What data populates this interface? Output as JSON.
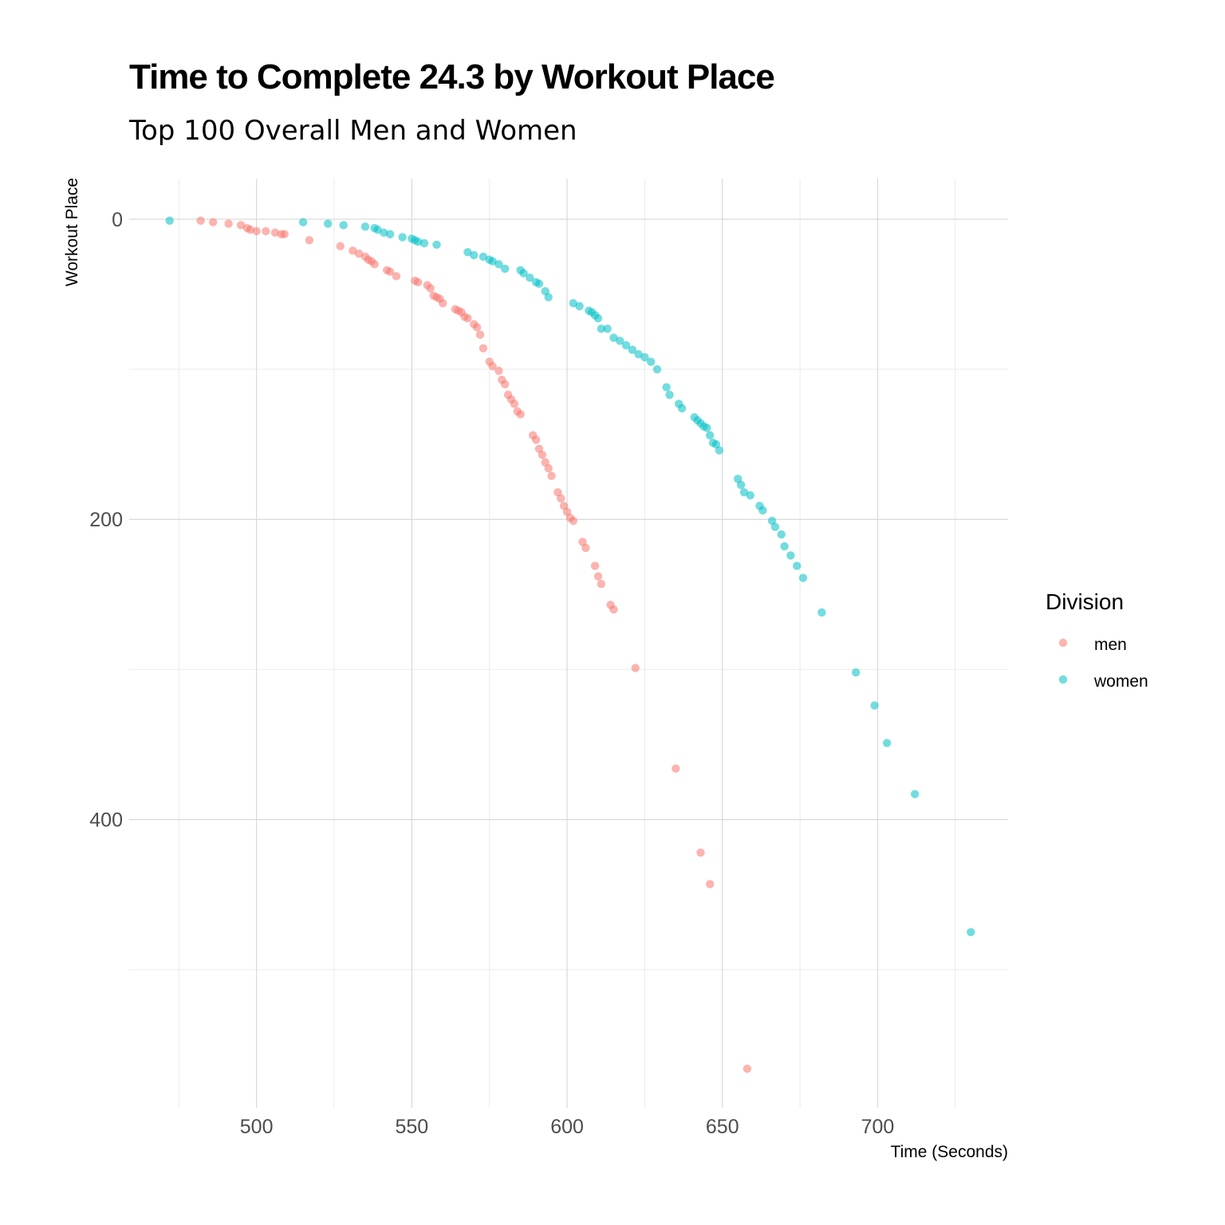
{
  "chart_data": {
    "type": "scatter",
    "title": "Time to Complete 24.3 by Workout Place",
    "subtitle": "Top 100 Overall Men and Women",
    "xlabel": "Time (Seconds)",
    "ylabel": "Workout Place",
    "xlim": [
      459,
      742
    ],
    "ylim": [
      -27,
      592
    ],
    "y_reversed": true,
    "x_ticks": [
      500,
      550,
      600,
      650,
      700
    ],
    "y_ticks": [
      0,
      200,
      400
    ],
    "grid": true,
    "legend": {
      "title": "Division",
      "position": "right"
    },
    "series": [
      {
        "name": "men",
        "color": "#F8766D",
        "points": [
          [
            482,
            1
          ],
          [
            486,
            2
          ],
          [
            491,
            3
          ],
          [
            495,
            4
          ],
          [
            497,
            6
          ],
          [
            498,
            7
          ],
          [
            500,
            8
          ],
          [
            503,
            8
          ],
          [
            506,
            9
          ],
          [
            508,
            10
          ],
          [
            509,
            10
          ],
          [
            517,
            14
          ],
          [
            527,
            18
          ],
          [
            531,
            21
          ],
          [
            533,
            23
          ],
          [
            535,
            25
          ],
          [
            536,
            27
          ],
          [
            537,
            28
          ],
          [
            538,
            30
          ],
          [
            542,
            34
          ],
          [
            543,
            35
          ],
          [
            545,
            38
          ],
          [
            551,
            41
          ],
          [
            552,
            42
          ],
          [
            555,
            44
          ],
          [
            556,
            46
          ],
          [
            557,
            51
          ],
          [
            558,
            52
          ],
          [
            559,
            53
          ],
          [
            560,
            56
          ],
          [
            564,
            60
          ],
          [
            565,
            61
          ],
          [
            566,
            62
          ],
          [
            567,
            65
          ],
          [
            568,
            66
          ],
          [
            570,
            70
          ],
          [
            571,
            72
          ],
          [
            572,
            77
          ],
          [
            573,
            86
          ],
          [
            575,
            95
          ],
          [
            576,
            98
          ],
          [
            578,
            101
          ],
          [
            579,
            107
          ],
          [
            580,
            110
          ],
          [
            581,
            117
          ],
          [
            582,
            120
          ],
          [
            583,
            123
          ],
          [
            584,
            128
          ],
          [
            585,
            130
          ],
          [
            589,
            144
          ],
          [
            590,
            147
          ],
          [
            591,
            153
          ],
          [
            592,
            157
          ],
          [
            593,
            162
          ],
          [
            594,
            166
          ],
          [
            595,
            171
          ],
          [
            597,
            182
          ],
          [
            598,
            186
          ],
          [
            599,
            191
          ],
          [
            600,
            195
          ],
          [
            601,
            199
          ],
          [
            602,
            201
          ],
          [
            605,
            215
          ],
          [
            606,
            219
          ],
          [
            609,
            231
          ],
          [
            610,
            238
          ],
          [
            611,
            243
          ],
          [
            614,
            257
          ],
          [
            615,
            260
          ],
          [
            622,
            299
          ],
          [
            635,
            366
          ],
          [
            643,
            422
          ],
          [
            646,
            443
          ],
          [
            658,
            566
          ]
        ]
      },
      {
        "name": "women",
        "color": "#00BFC4",
        "points": [
          [
            472,
            1
          ],
          [
            515,
            2
          ],
          [
            523,
            3
          ],
          [
            528,
            4
          ],
          [
            535,
            5
          ],
          [
            538,
            6
          ],
          [
            539,
            7
          ],
          [
            541,
            9
          ],
          [
            543,
            10
          ],
          [
            547,
            12
          ],
          [
            550,
            13
          ],
          [
            551,
            14
          ],
          [
            552,
            15
          ],
          [
            554,
            16
          ],
          [
            558,
            17
          ],
          [
            568,
            22
          ],
          [
            570,
            24
          ],
          [
            573,
            25
          ],
          [
            575,
            27
          ],
          [
            576,
            28
          ],
          [
            578,
            30
          ],
          [
            580,
            33
          ],
          [
            585,
            34
          ],
          [
            586,
            36
          ],
          [
            588,
            39
          ],
          [
            590,
            42
          ],
          [
            591,
            43
          ],
          [
            593,
            48
          ],
          [
            594,
            52
          ],
          [
            602,
            56
          ],
          [
            604,
            58
          ],
          [
            607,
            61
          ],
          [
            608,
            62
          ],
          [
            609,
            64
          ],
          [
            610,
            66
          ],
          [
            611,
            73
          ],
          [
            613,
            73
          ],
          [
            615,
            79
          ],
          [
            617,
            81
          ],
          [
            619,
            84
          ],
          [
            621,
            87
          ],
          [
            623,
            90
          ],
          [
            625,
            92
          ],
          [
            627,
            95
          ],
          [
            629,
            100
          ],
          [
            632,
            112
          ],
          [
            633,
            117
          ],
          [
            636,
            123
          ],
          [
            637,
            126
          ],
          [
            641,
            132
          ],
          [
            642,
            134
          ],
          [
            643,
            136
          ],
          [
            644,
            138
          ],
          [
            645,
            139
          ],
          [
            646,
            144
          ],
          [
            647,
            149
          ],
          [
            648,
            150
          ],
          [
            649,
            154
          ],
          [
            655,
            173
          ],
          [
            656,
            177
          ],
          [
            657,
            182
          ],
          [
            659,
            184
          ],
          [
            662,
            191
          ],
          [
            663,
            194
          ],
          [
            666,
            201
          ],
          [
            667,
            205
          ],
          [
            669,
            210
          ],
          [
            670,
            218
          ],
          [
            672,
            224
          ],
          [
            674,
            231
          ],
          [
            676,
            239
          ],
          [
            682,
            262
          ],
          [
            693,
            302
          ],
          [
            699,
            324
          ],
          [
            703,
            349
          ],
          [
            712,
            383
          ],
          [
            730,
            475
          ]
        ]
      }
    ]
  }
}
